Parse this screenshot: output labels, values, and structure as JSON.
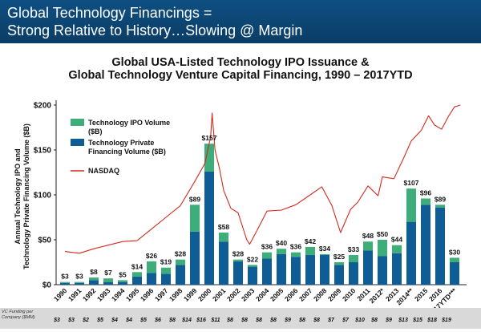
{
  "banner": {
    "line1": "Global Technology Financings =",
    "line2": "Strong Relative to History…Slowing @ Margin",
    "color": "#0d4777"
  },
  "chart_data": {
    "type": "bar",
    "title": "Global USA-Listed Technology IPO Issuance &",
    "subtitle": "Global Technology Venture Capital Financing, 1990 – 2017YTD",
    "ylabel": "Annual Technology IPO and Technology Private Financing Volume ($B)",
    "xlabel": "",
    "ylim": [
      0,
      200
    ],
    "yticks": [
      "$0",
      "$50",
      "$100",
      "$150",
      "$200"
    ],
    "stacked": true,
    "grid": false,
    "legend_position": "top-left",
    "categories": [
      "1990",
      "1991",
      "1992",
      "1993",
      "1994",
      "1995",
      "1996",
      "1997",
      "1998",
      "1999",
      "2000",
      "2001",
      "2002",
      "2003",
      "2004",
      "2005",
      "2006",
      "2007",
      "2008",
      "2009",
      "2010",
      "2011",
      "2012*",
      "2013",
      "2014**",
      "2015",
      "2016",
      "2017YTD***"
    ],
    "series": [
      {
        "name": "Technology IPO Volume ($B)",
        "color": "#3dae7a",
        "values": [
          1,
          1,
          3,
          4,
          2,
          5,
          13,
          7,
          6,
          30,
          31,
          10,
          2,
          2,
          7,
          6,
          5,
          9,
          1,
          3,
          8,
          10,
          18,
          9,
          37,
          7,
          3,
          5
        ]
      },
      {
        "name": "Technology Private Financing Volume ($B)",
        "color": "#0e5d96",
        "values": [
          2,
          2,
          5,
          3,
          3,
          9,
          13,
          12,
          22,
          59,
          126,
          48,
          26,
          20,
          29,
          34,
          31,
          33,
          33,
          22,
          25,
          38,
          32,
          35,
          70,
          89,
          86,
          25
        ]
      },
      {
        "name": "NASDAQ",
        "color": "#d32a1e",
        "type": "line"
      }
    ],
    "totals": [
      "$3",
      "$3",
      "$8",
      "$7",
      "$5",
      "$14",
      "$26",
      "$19",
      "$28",
      "$89",
      "$157",
      "$58",
      "$28",
      "$22",
      "$36",
      "$40",
      "$36",
      "$42",
      "$34",
      "$25",
      "$33",
      "$48",
      "$50",
      "$44",
      "$107",
      "$96",
      "$89",
      "$30"
    ],
    "nasdaq_index_values": [
      [
        1990,
        37
      ],
      [
        1991,
        35
      ],
      [
        1992,
        40
      ],
      [
        1993,
        44
      ],
      [
        1994,
        48
      ],
      [
        1995,
        49
      ],
      [
        1996,
        62
      ],
      [
        1997,
        75
      ],
      [
        1998,
        88
      ],
      [
        1999,
        115
      ],
      [
        1999.7,
        135
      ],
      [
        2000.1,
        165
      ],
      [
        2000.2,
        191
      ],
      [
        2000.4,
        150
      ],
      [
        2000.7,
        130
      ],
      [
        2001,
        105
      ],
      [
        2001.5,
        85
      ],
      [
        2002,
        80
      ],
      [
        2002.6,
        50
      ],
      [
        2002.8,
        45
      ],
      [
        2003.3,
        60
      ],
      [
        2004,
        82
      ],
      [
        2005,
        83
      ],
      [
        2006,
        89
      ],
      [
        2007,
        100
      ],
      [
        2007.8,
        109
      ],
      [
        2008.5,
        88
      ],
      [
        2009.1,
        58
      ],
      [
        2009.8,
        84
      ],
      [
        2010.3,
        92
      ],
      [
        2011,
        110
      ],
      [
        2011.7,
        99
      ],
      [
        2012,
        120
      ],
      [
        2012.8,
        118
      ],
      [
        2013.5,
        142
      ],
      [
        2014,
        160
      ],
      [
        2014.7,
        172
      ],
      [
        2015.2,
        188
      ],
      [
        2015.6,
        178
      ],
      [
        2016.1,
        173
      ],
      [
        2016.6,
        188
      ],
      [
        2017,
        198
      ],
      [
        2017.4,
        200
      ]
    ],
    "vc_funding": {
      "label": "VC Funding per Company ($MM)",
      "values": [
        "$3",
        "$3",
        "$2",
        "$5",
        "$4",
        "$4",
        "$5",
        "$6",
        "$8",
        "$14",
        "$16",
        "$11",
        "$8",
        "$8",
        "$8",
        "$8",
        "$9",
        "$8",
        "$8",
        "$7",
        "$7",
        "$10",
        "$8",
        "$9",
        "$13",
        "$15",
        "$18",
        "$19"
      ]
    }
  }
}
